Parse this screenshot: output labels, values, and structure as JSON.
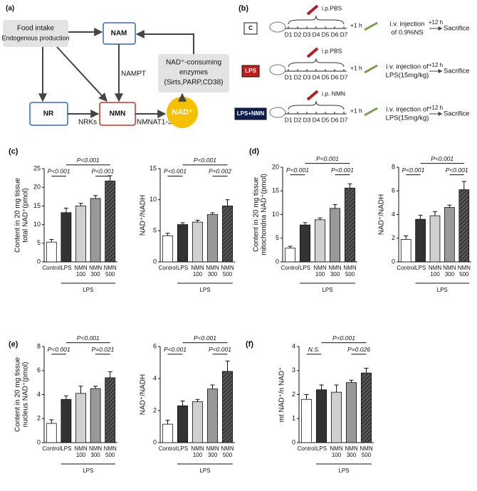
{
  "panel_a": {
    "label": "(a)",
    "food": [
      "Food intake",
      "Endogenous production"
    ],
    "nam": "NAM",
    "nampt": "NAMPT",
    "enzymes": [
      "NAD⁺-consuming",
      "enzymes",
      "(Sirts,PARP,CD38)"
    ],
    "nr": "NR",
    "nrks": "NRKs",
    "nmn": "NMN",
    "nmnat": "NMNAT1-3",
    "nad": "NAD⁺"
  },
  "panel_b": {
    "label": "(b)",
    "days": [
      "D1",
      "D2",
      "D3",
      "D4",
      "D5",
      "D6",
      "D7"
    ],
    "plus_1h": "+1 h",
    "plus_12h": "+12 h",
    "end": "Sacrifice",
    "rows": [
      {
        "label": "C",
        "ip": "i.p.PBS",
        "injection": [
          "i.v. injection",
          "of 0.9%NS"
        ]
      },
      {
        "label": "LPS",
        "ip": "i.p.PBS",
        "injection": [
          "i.v. injection of",
          "LPS(15mg/kg)"
        ]
      },
      {
        "label": "LPS+NMN",
        "ip": "i.p. NMN",
        "injection": [
          "i.v. injection of",
          "LPS(15mg/kg)"
        ]
      }
    ]
  },
  "chart_data": [
    {
      "type": "bar",
      "panel": "(c)",
      "ylabel": [
        "Content in 20 mg tissue",
        "total NAD⁺(pmol)"
      ],
      "categories": [
        [
          "Control"
        ],
        [
          "LPS"
        ],
        [
          "NMN",
          "100"
        ],
        [
          "NMN",
          "300"
        ],
        [
          "NMN",
          "500"
        ]
      ],
      "values": [
        5.3,
        13.2,
        15,
        17,
        21.7
      ],
      "errors": [
        0.7,
        1.2,
        0.7,
        0.8,
        1.4
      ],
      "colors": [
        "#ffffff",
        "#333333",
        "#d0d0d0",
        "#999999",
        "#555555"
      ],
      "hatch": [
        false,
        false,
        false,
        false,
        true
      ],
      "ylim": [
        0,
        25
      ],
      "yticks": [
        0,
        5,
        10,
        15,
        20,
        25
      ],
      "group_label": "LPS",
      "annotations": [
        {
          "text": "P<0.001",
          "from": 0,
          "to": 1
        },
        {
          "text": "P<0.001",
          "from": 1,
          "to": 4
        },
        {
          "text": "P<0.001",
          "from": 3,
          "to": 4
        }
      ]
    },
    {
      "type": "bar",
      "ylabel": [
        "NAD⁺/NADH"
      ],
      "categories": [
        [
          "Control"
        ],
        [
          "LPS"
        ],
        [
          "NMN",
          "100"
        ],
        [
          "NMN",
          "300"
        ],
        [
          "NMN",
          "500"
        ]
      ],
      "values": [
        4.2,
        6.0,
        6.4,
        7.6,
        9.0
      ],
      "errors": [
        0.4,
        0.3,
        0.3,
        0.3,
        1.0
      ],
      "colors": [
        "#ffffff",
        "#333333",
        "#d0d0d0",
        "#999999",
        "#555555"
      ],
      "hatch": [
        false,
        false,
        false,
        false,
        true
      ],
      "ylim": [
        0,
        15
      ],
      "yticks": [
        0,
        5,
        10,
        15
      ],
      "group_label": "LPS",
      "annotations": [
        {
          "text": "P<0.001",
          "from": 0,
          "to": 1
        },
        {
          "text": "P<0.001",
          "from": 1,
          "to": 4
        },
        {
          "text": "P=0.002",
          "from": 3,
          "to": 4
        }
      ]
    },
    {
      "type": "bar",
      "panel": "(d)",
      "ylabel": [
        "Content in 20 mg tissue",
        "mitochondria NAD⁺(pmol)"
      ],
      "categories": [
        [
          "Control"
        ],
        [
          "LPS"
        ],
        [
          "NMN",
          "100"
        ],
        [
          "NMN",
          "300"
        ],
        [
          "NMN",
          "500"
        ]
      ],
      "values": [
        2.9,
        7.8,
        8.9,
        11.3,
        15.6
      ],
      "errors": [
        0.4,
        0.5,
        0.4,
        0.8,
        0.9
      ],
      "colors": [
        "#ffffff",
        "#333333",
        "#d0d0d0",
        "#999999",
        "#555555"
      ],
      "hatch": [
        false,
        false,
        false,
        false,
        true
      ],
      "ylim": [
        0,
        20
      ],
      "yticks": [
        0,
        5,
        10,
        15,
        20
      ],
      "group_label": "LPS",
      "annotations": [
        {
          "text": "P<0.001",
          "from": 0,
          "to": 1
        },
        {
          "text": "P<0.001",
          "from": 1,
          "to": 4
        },
        {
          "text": "P<0.001",
          "from": 3,
          "to": 4
        }
      ]
    },
    {
      "type": "bar",
      "ylabel": [
        "NAD⁺/NADH"
      ],
      "categories": [
        [
          "Control"
        ],
        [
          "LPS"
        ],
        [
          "NMN",
          "100"
        ],
        [
          "NMN",
          "300"
        ],
        [
          "NMN",
          "500"
        ]
      ],
      "values": [
        1.9,
        3.6,
        3.9,
        4.6,
        6.1
      ],
      "errors": [
        0.3,
        0.35,
        0.35,
        0.2,
        0.7
      ],
      "colors": [
        "#ffffff",
        "#333333",
        "#d0d0d0",
        "#999999",
        "#555555"
      ],
      "hatch": [
        false,
        false,
        false,
        false,
        true
      ],
      "ylim": [
        0,
        8
      ],
      "yticks": [
        0,
        2,
        4,
        6,
        8
      ],
      "group_label": "LPS",
      "annotations": [
        {
          "text": "P<0.001",
          "from": 0,
          "to": 1
        },
        {
          "text": "P<0.001",
          "from": 1,
          "to": 4
        },
        {
          "text": "P<0.001",
          "from": 3,
          "to": 4
        }
      ]
    },
    {
      "type": "bar",
      "panel": "(e)",
      "ylabel": [
        "Content in 20 mg tissue",
        "nucleus NAD⁺(pmol)"
      ],
      "categories": [
        [
          "Control"
        ],
        [
          "LPS"
        ],
        [
          "NMN",
          "100"
        ],
        [
          "NMN",
          "300"
        ],
        [
          "NMN",
          "500"
        ]
      ],
      "values": [
        1.6,
        3.6,
        4.1,
        4.5,
        5.4
      ],
      "errors": [
        0.3,
        0.3,
        0.6,
        0.2,
        0.5
      ],
      "colors": [
        "#ffffff",
        "#333333",
        "#d0d0d0",
        "#999999",
        "#555555"
      ],
      "hatch": [
        false,
        false,
        false,
        false,
        true
      ],
      "ylim": [
        0,
        8
      ],
      "yticks": [
        0,
        2,
        4,
        6,
        8
      ],
      "group_label": "LPS",
      "annotations": [
        {
          "text": "P<0.001",
          "from": 0,
          "to": 1
        },
        {
          "text": "P<0.001",
          "from": 1,
          "to": 4
        },
        {
          "text": "P=0.021",
          "from": 3,
          "to": 4
        }
      ]
    },
    {
      "type": "bar",
      "ylabel": [
        "NAD⁺/NADH"
      ],
      "categories": [
        [
          "Control"
        ],
        [
          "LPS"
        ],
        [
          "NMN",
          "100"
        ],
        [
          "NMN",
          "300"
        ],
        [
          "NMN",
          "500"
        ]
      ],
      "values": [
        1.15,
        2.3,
        2.55,
        3.35,
        4.45
      ],
      "errors": [
        0.25,
        0.3,
        0.15,
        0.25,
        0.65
      ],
      "colors": [
        "#ffffff",
        "#333333",
        "#d0d0d0",
        "#999999",
        "#555555"
      ],
      "hatch": [
        false,
        false,
        false,
        false,
        true
      ],
      "ylim": [
        0,
        6
      ],
      "yticks": [
        0,
        2,
        4,
        6
      ],
      "group_label": "LPS",
      "annotations": [
        {
          "text": "P<0.001",
          "from": 0,
          "to": 1
        },
        {
          "text": "P<0.001",
          "from": 1,
          "to": 4
        },
        {
          "text": "P<0.001",
          "from": 3,
          "to": 4
        }
      ]
    },
    {
      "type": "bar",
      "panel": "(f)",
      "ylabel": [
        "mt NAD⁺/n NAD⁺"
      ],
      "categories": [
        [
          "Control"
        ],
        [
          "LPS"
        ],
        [
          "NMN",
          "100"
        ],
        [
          "NMN",
          "300"
        ],
        [
          "NMN",
          "500"
        ]
      ],
      "values": [
        1.8,
        2.2,
        2.1,
        2.5,
        2.9
      ],
      "errors": [
        0.2,
        0.2,
        0.3,
        0.1,
        0.2
      ],
      "colors": [
        "#ffffff",
        "#333333",
        "#d0d0d0",
        "#999999",
        "#555555"
      ],
      "hatch": [
        false,
        false,
        false,
        false,
        true
      ],
      "ylim": [
        0,
        4
      ],
      "yticks": [
        0,
        1,
        2,
        3,
        4
      ],
      "group_label": "LPS",
      "annotations": [
        {
          "text": "N.S.",
          "from": 0,
          "to": 1
        },
        {
          "text": "P<0.001",
          "from": 1,
          "to": 4
        },
        {
          "text": "P=0.026",
          "from": 3,
          "to": 4
        }
      ]
    }
  ]
}
